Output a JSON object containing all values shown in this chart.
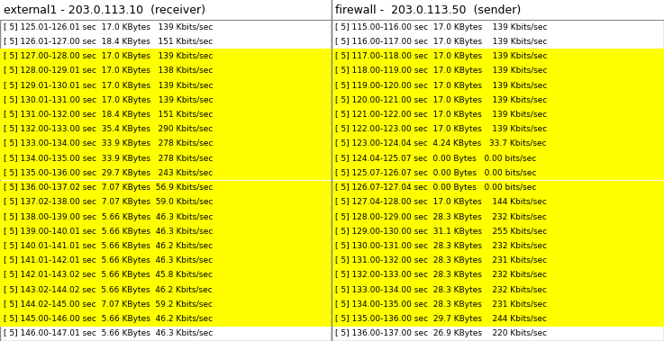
{
  "left_header": "external1 - 203.0.113.10  (receiver)",
  "right_header": "firewall -  203.0.113.50  (sender)",
  "left_rows": [
    {
      "text": "[ 5] 125.01-126.01 sec  17.0 KBytes   139 Kbits/sec",
      "highlight": false
    },
    {
      "text": "[ 5] 126.01-127.00 sec  18.4 KBytes   151 Kbits/sec",
      "highlight": false
    },
    {
      "text": "[ 5] 127.00-128.00 sec  17.0 KBytes   139 Kbits/sec",
      "highlight": true
    },
    {
      "text": "[ 5] 128.00-129.01 sec  17.0 KBytes   138 Kbits/sec",
      "highlight": true
    },
    {
      "text": "[ 5] 129.01-130.01 sec  17.0 KBytes   139 Kbits/sec",
      "highlight": true
    },
    {
      "text": "[ 5] 130.01-131.00 sec  17.0 KBytes   139 Kbits/sec",
      "highlight": true
    },
    {
      "text": "[ 5] 131.00-132.00 sec  18.4 KBytes   151 Kbits/sec",
      "highlight": true
    },
    {
      "text": "[ 5] 132.00-133.00 sec  35.4 KBytes   290 Kbits/sec",
      "highlight": true
    },
    {
      "text": "[ 5] 133.00-134.00 sec  33.9 KBytes   278 Kbits/sec",
      "highlight": true
    },
    {
      "text": "[ 5] 134.00-135.00 sec  33.9 KBytes   278 Kbits/sec",
      "highlight": true
    },
    {
      "text": "[ 5] 135.00-136.00 sec  29.7 KBytes   243 Kbits/sec",
      "highlight": true
    },
    {
      "text": "[ 5] 136.00-137.02 sec  7.07 KBytes  56.9 Kbits/sec",
      "highlight": true
    },
    {
      "text": "[ 5] 137.02-138.00 sec  7.07 KBytes  59.0 Kbits/sec",
      "highlight": true
    },
    {
      "text": "[ 5] 138.00-139.00 sec  5.66 KBytes  46.3 Kbits/sec",
      "highlight": true
    },
    {
      "text": "[ 5] 139.00-140.01 sec  5.66 KBytes  46.3 Kbits/sec",
      "highlight": true
    },
    {
      "text": "[ 5] 140.01-141.01 sec  5.66 KBytes  46.2 Kbits/sec",
      "highlight": true
    },
    {
      "text": "[ 5] 141.01-142.01 sec  5.66 KBytes  46.3 Kbits/sec",
      "highlight": true
    },
    {
      "text": "[ 5] 142.01-143.02 sec  5.66 KBytes  45.8 Kbits/sec",
      "highlight": true
    },
    {
      "text": "[ 5] 143.02-144.02 sec  5.66 KBytes  46.2 Kbits/sec",
      "highlight": true
    },
    {
      "text": "[ 5] 144.02-145.00 sec  7.07 KBytes  59.2 Kbits/sec",
      "highlight": true
    },
    {
      "text": "[ 5] 145.00-146.00 sec  5.66 KBytes  46.2 Kbits/sec",
      "highlight": true
    },
    {
      "text": "[ 5] 146.00-147.01 sec  5.66 KBytes  46.3 Kbits/sec",
      "highlight": false
    }
  ],
  "right_rows": [
    {
      "text": "[ 5] 115.00-116.00 sec  17.0 KBytes    139 Kbits/sec",
      "highlight": false
    },
    {
      "text": "[ 5] 116.00-117.00 sec  17.0 KBytes    139 Kbits/sec",
      "highlight": false
    },
    {
      "text": "[ 5] 117.00-118.00 sec  17.0 KBytes    139 Kbits/sec",
      "highlight": true
    },
    {
      "text": "[ 5] 118.00-119.00 sec  17.0 KBytes    139 Kbits/sec",
      "highlight": true
    },
    {
      "text": "[ 5] 119.00-120.00 sec  17.0 KBytes    139 Kbits/sec",
      "highlight": true
    },
    {
      "text": "[ 5] 120.00-121.00 sec  17.0 KBytes    139 Kbits/sec",
      "highlight": true
    },
    {
      "text": "[ 5] 121.00-122.00 sec  17.0 KBytes    139 Kbits/sec",
      "highlight": true
    },
    {
      "text": "[ 5] 122.00-123.00 sec  17.0 KBytes    139 Kbits/sec",
      "highlight": true
    },
    {
      "text": "[ 5] 123.00-124.04 sec  4.24 KBytes   33.7 Kbits/sec",
      "highlight": true
    },
    {
      "text": "[ 5] 124.04-125.07 sec  0.00 Bytes   0.00 bits/sec",
      "highlight": true
    },
    {
      "text": "[ 5] 125.07-126.07 sec  0.00 Bytes   0.00 bits/sec",
      "highlight": true
    },
    {
      "text": "[ 5] 126.07-127.04 sec  0.00 Bytes   0.00 bits/sec",
      "highlight": true
    },
    {
      "text": "[ 5] 127.04-128.00 sec  17.0 KBytes    144 Kbits/sec",
      "highlight": true
    },
    {
      "text": "[ 5] 128.00-129.00 sec  28.3 KBytes    232 Kbits/sec",
      "highlight": true
    },
    {
      "text": "[ 5] 129.00-130.00 sec  31.1 KBytes    255 Kbits/sec",
      "highlight": true
    },
    {
      "text": "[ 5] 130.00-131.00 sec  28.3 KBytes    232 Kbits/sec",
      "highlight": true
    },
    {
      "text": "[ 5] 131.00-132.00 sec  28.3 KBytes    231 Kbits/sec",
      "highlight": true
    },
    {
      "text": "[ 5] 132.00-133.00 sec  28.3 KBytes    232 Kbits/sec",
      "highlight": true
    },
    {
      "text": "[ 5] 133.00-134.00 sec  28.3 KBytes    232 Kbits/sec",
      "highlight": true
    },
    {
      "text": "[ 5] 134.00-135.00 sec  28.3 KBytes    231 Kbits/sec",
      "highlight": true
    },
    {
      "text": "[ 5] 135.00-136.00 sec  29.7 KBytes    244 Kbits/sec",
      "highlight": true
    },
    {
      "text": "[ 5] 136.00-137.00 sec  26.9 KBytes    220 Kbits/sec",
      "highlight": false
    }
  ],
  "highlight_color": "#FFFF00",
  "text_color": "#000000",
  "bg_color": "#FFFFFF",
  "border_color": "#888888",
  "font_size": 6.5,
  "header_font_size": 9.0,
  "fig_width": 7.37,
  "fig_height": 3.79,
  "dpi": 100
}
